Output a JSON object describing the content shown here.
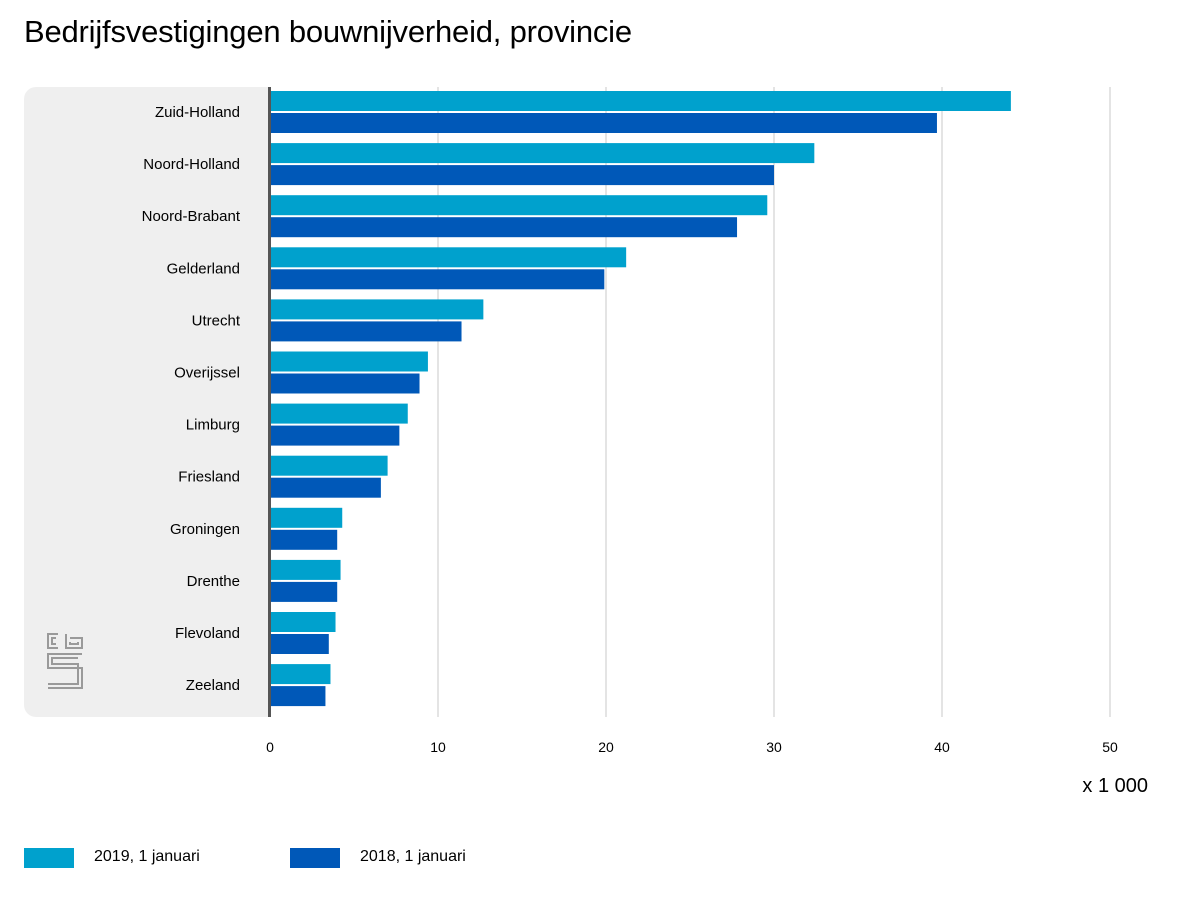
{
  "title": "Bedrijfsvestigingen bouwnijverheid, provincie",
  "unit_label": "x 1 000",
  "chart_data": {
    "type": "bar",
    "orientation": "horizontal",
    "title": "Bedrijfsvestigingen bouwnijverheid, provincie",
    "xlabel": "x 1 000",
    "ylabel": "",
    "categories": [
      "Zuid-Holland",
      "Noord-Holland",
      "Noord-Brabant",
      "Gelderland",
      "Utrecht",
      "Overijssel",
      "Limburg",
      "Friesland",
      "Groningen",
      "Drenthe",
      "Flevoland",
      "Zeeland"
    ],
    "series": [
      {
        "name": "2019, 1 januari",
        "color": "#00a1cd",
        "values": [
          44.1,
          32.4,
          29.6,
          21.2,
          12.7,
          9.4,
          8.2,
          7.0,
          4.3,
          4.2,
          3.9,
          3.6
        ]
      },
      {
        "name": "2018, 1 januari",
        "color": "#0058b8",
        "values": [
          39.7,
          30.0,
          27.8,
          19.9,
          11.4,
          8.9,
          7.7,
          6.6,
          4.0,
          4.0,
          3.5,
          3.3
        ]
      }
    ],
    "xlim": [
      0,
      50
    ],
    "xticks": [
      0,
      10,
      20,
      30,
      40,
      50
    ],
    "grid": true,
    "legend_position": "bottom-left"
  }
}
